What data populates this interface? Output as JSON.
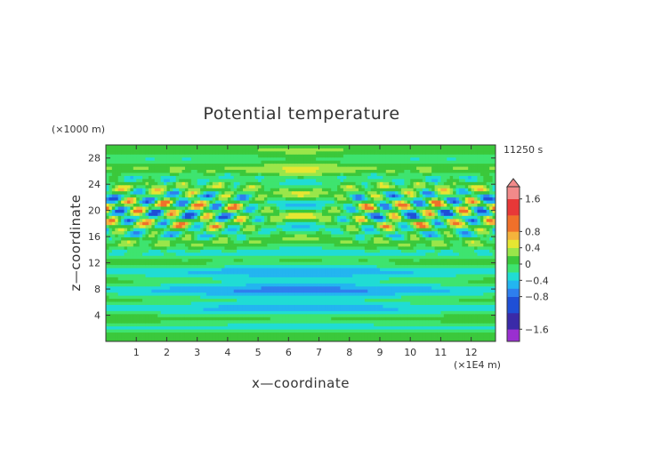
{
  "chart_data": {
    "type": "heatmap",
    "title": "Potential temperature",
    "xlabel": "x—coordinate",
    "ylabel": "z—coordinate",
    "x_unit_label": "(×1E4 m)",
    "y_unit_label": "(×1000 m)",
    "time_label": "11250 s",
    "xlim": [
      0,
      12.8
    ],
    "ylim": [
      0,
      30
    ],
    "x_ticks": [
      "1",
      "2",
      "3",
      "4",
      "5",
      "6",
      "7",
      "8",
      "9",
      "10",
      "11",
      "12"
    ],
    "y_ticks": [
      "4",
      "8",
      "12",
      "16",
      "20",
      "24",
      "28"
    ],
    "colorbar": {
      "range": [
        -1.9,
        1.9
      ],
      "tick_labels": [
        "1.6",
        "0.8",
        "0.4",
        "0",
        "−0.4",
        "−0.8",
        "−1.6"
      ],
      "tick_values": [
        1.6,
        0.8,
        0.4,
        0,
        -0.4,
        -0.8,
        -1.6
      ],
      "levels": [
        -1.9,
        -1.6,
        -1.2,
        -0.8,
        -0.6,
        -0.4,
        -0.2,
        0,
        0.2,
        0.4,
        0.6,
        0.8,
        1.2,
        1.6,
        1.9
      ],
      "colors": [
        "#9a2fd0",
        "#3a2aa8",
        "#1f4fd6",
        "#2e7fee",
        "#23b5f0",
        "#20dcd4",
        "#3ee46f",
        "#3bc83b",
        "#9ae64a",
        "#e6e632",
        "#f4b33c",
        "#f0702a",
        "#e83838",
        "#f28a8a"
      ]
    }
  }
}
